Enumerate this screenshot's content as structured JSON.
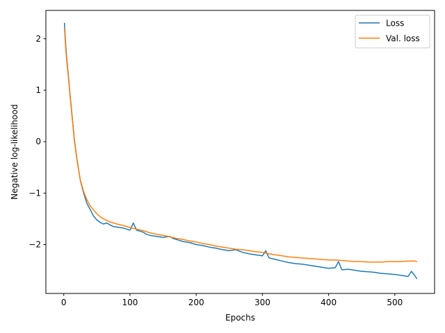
{
  "chart_data": {
    "type": "line",
    "title": "",
    "xlabel": "Epochs",
    "ylabel": "Negative log-likelihood",
    "xlim": [
      -27,
      560
    ],
    "ylim": [
      -2.95,
      2.55
    ],
    "xticks": [
      0,
      100,
      200,
      300,
      400,
      500
    ],
    "yticks": [
      -2,
      -1,
      0,
      1,
      2
    ],
    "grid": false,
    "legend_position": "top-right",
    "series": [
      {
        "name": "Loss",
        "color": "#1f77b4",
        "x": [
          1,
          3,
          5,
          8,
          10,
          13,
          16,
          20,
          25,
          30,
          35,
          40,
          45,
          50,
          55,
          60,
          65,
          70,
          75,
          80,
          90,
          100,
          105,
          110,
          120,
          125,
          130,
          140,
          150,
          160,
          165,
          170,
          180,
          190,
          200,
          210,
          220,
          230,
          240,
          250,
          260,
          270,
          280,
          290,
          300,
          305,
          310,
          320,
          330,
          340,
          350,
          360,
          370,
          380,
          390,
          400,
          410,
          415,
          420,
          430,
          440,
          450,
          460,
          470,
          480,
          490,
          500,
          510,
          520,
          525,
          530,
          533
        ],
        "y": [
          2.3,
          1.85,
          1.55,
          1.15,
          0.85,
          0.45,
          0.05,
          -0.35,
          -0.75,
          -1.0,
          -1.2,
          -1.32,
          -1.45,
          -1.52,
          -1.57,
          -1.6,
          -1.58,
          -1.62,
          -1.65,
          -1.66,
          -1.68,
          -1.72,
          -1.58,
          -1.72,
          -1.76,
          -1.8,
          -1.82,
          -1.84,
          -1.86,
          -1.84,
          -1.88,
          -1.9,
          -1.94,
          -1.96,
          -2.0,
          -2.02,
          -2.05,
          -2.07,
          -2.1,
          -2.12,
          -2.1,
          -2.15,
          -2.18,
          -2.2,
          -2.22,
          -2.12,
          -2.26,
          -2.29,
          -2.32,
          -2.35,
          -2.37,
          -2.38,
          -2.4,
          -2.42,
          -2.44,
          -2.46,
          -2.45,
          -2.33,
          -2.49,
          -2.48,
          -2.5,
          -2.52,
          -2.53,
          -2.54,
          -2.56,
          -2.57,
          -2.58,
          -2.6,
          -2.62,
          -2.52,
          -2.6,
          -2.66
        ]
      },
      {
        "name": "Val. loss",
        "color": "#ff7f0e",
        "x": [
          1,
          3,
          5,
          8,
          10,
          13,
          16,
          20,
          25,
          30,
          35,
          40,
          45,
          50,
          55,
          60,
          65,
          70,
          80,
          90,
          100,
          110,
          120,
          130,
          140,
          150,
          160,
          170,
          180,
          190,
          200,
          210,
          220,
          230,
          240,
          250,
          260,
          270,
          280,
          290,
          300,
          310,
          320,
          330,
          340,
          350,
          360,
          370,
          380,
          390,
          400,
          410,
          420,
          430,
          440,
          450,
          460,
          470,
          480,
          490,
          500,
          510,
          520,
          530,
          533
        ],
        "y": [
          2.2,
          1.78,
          1.5,
          1.12,
          0.82,
          0.42,
          0.02,
          -0.37,
          -0.74,
          -0.97,
          -1.13,
          -1.25,
          -1.33,
          -1.4,
          -1.46,
          -1.5,
          -1.53,
          -1.56,
          -1.6,
          -1.63,
          -1.67,
          -1.7,
          -1.73,
          -1.77,
          -1.8,
          -1.82,
          -1.85,
          -1.88,
          -1.9,
          -1.93,
          -1.95,
          -1.98,
          -2.0,
          -2.03,
          -2.05,
          -2.07,
          -2.09,
          -2.1,
          -2.12,
          -2.14,
          -2.15,
          -2.18,
          -2.2,
          -2.22,
          -2.24,
          -2.25,
          -2.26,
          -2.27,
          -2.28,
          -2.29,
          -2.3,
          -2.3,
          -2.31,
          -2.32,
          -2.33,
          -2.33,
          -2.34,
          -2.34,
          -2.34,
          -2.33,
          -2.33,
          -2.33,
          -2.32,
          -2.32,
          -2.33
        ]
      }
    ]
  }
}
